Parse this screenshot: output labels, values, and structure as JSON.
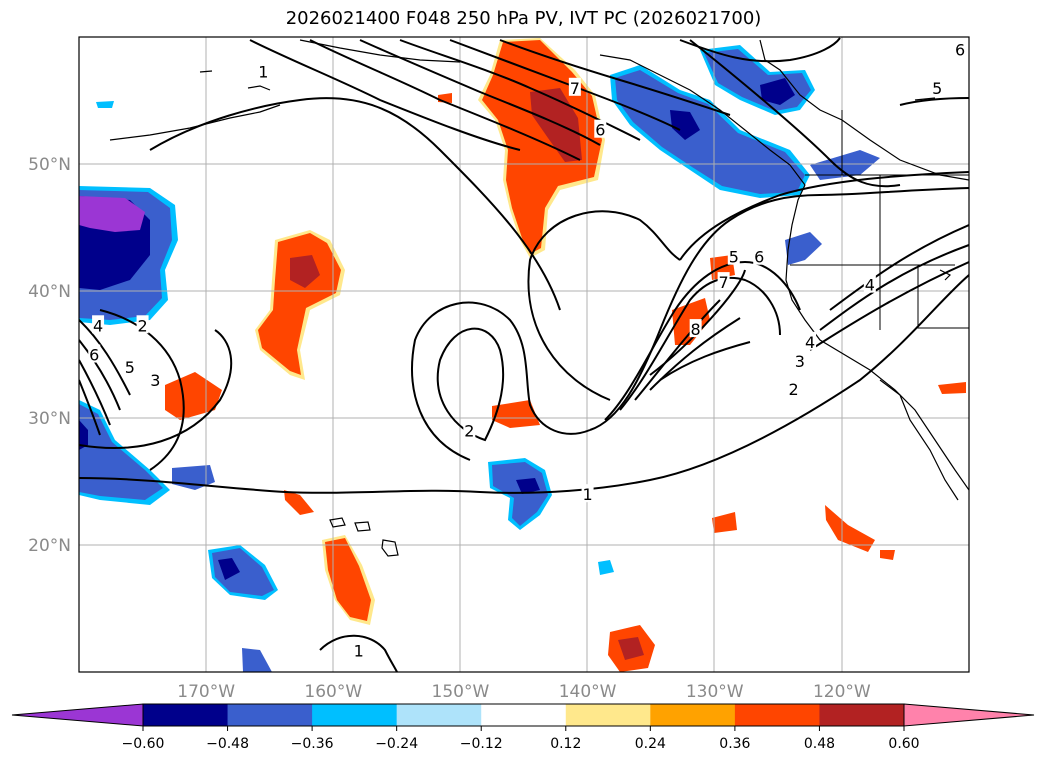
{
  "title": "2026021400 F048 250 hPa PV, IVT PC (2026021700)",
  "map": {
    "lon_range": [
      -180,
      -110
    ],
    "lat_range": [
      10,
      60
    ],
    "lat_ticks": [
      {
        "value": 20,
        "label": "20°N"
      },
      {
        "value": 30,
        "label": "30°N"
      },
      {
        "value": 40,
        "label": "40°N"
      },
      {
        "value": 50,
        "label": "50°N"
      }
    ],
    "lon_ticks": [
      {
        "value": -170,
        "label": "170°W"
      },
      {
        "value": -160,
        "label": "160°W"
      },
      {
        "value": -150,
        "label": "150°W"
      },
      {
        "value": -140,
        "label": "140°W"
      },
      {
        "value": -130,
        "label": "130°W"
      },
      {
        "value": -120,
        "label": "120°W"
      }
    ],
    "grid": true,
    "contour_labels": [
      {
        "text": "1",
        "lon": -165.5,
        "lat": 57.3
      },
      {
        "text": "7",
        "lon": -141.0,
        "lat": 56.0
      },
      {
        "text": "6",
        "lon": -139.0,
        "lat": 52.7
      },
      {
        "text": "5",
        "lon": -112.5,
        "lat": 56.0
      },
      {
        "text": "6",
        "lon": -110.7,
        "lat": 59.0
      },
      {
        "text": "5",
        "lon": -128.5,
        "lat": 42.7
      },
      {
        "text": "6",
        "lon": -126.5,
        "lat": 42.7
      },
      {
        "text": "7",
        "lon": -129.3,
        "lat": 40.7
      },
      {
        "text": "8",
        "lon": -131.5,
        "lat": 37.0
      },
      {
        "text": "4",
        "lon": -117.8,
        "lat": 40.5
      },
      {
        "text": "4",
        "lon": -122.5,
        "lat": 36.0
      },
      {
        "text": "3",
        "lon": -123.3,
        "lat": 34.5
      },
      {
        "text": "2",
        "lon": -123.8,
        "lat": 32.3
      },
      {
        "text": "2",
        "lon": -149.3,
        "lat": 29.0
      },
      {
        "text": "1",
        "lon": -140.0,
        "lat": 24.0
      },
      {
        "text": "4",
        "lon": -178.5,
        "lat": 37.3
      },
      {
        "text": "2",
        "lon": -175.0,
        "lat": 37.3
      },
      {
        "text": "6",
        "lon": -178.8,
        "lat": 35.0
      },
      {
        "text": "5",
        "lon": -176.0,
        "lat": 34.0
      },
      {
        "text": "3",
        "lon": -174.0,
        "lat": 33.0
      },
      {
        "text": "1",
        "lon": -158.0,
        "lat": 11.7
      }
    ]
  },
  "colorbar": {
    "colors": [
      "#9b36d4",
      "#00008b",
      "#3a5fcd",
      "#00bfff",
      "#aee3fa",
      "#ffffff",
      "#ffe88c",
      "#ffa200",
      "#ff4500",
      "#b22222",
      "#ff82ab"
    ],
    "tick_labels": [
      "−0.60",
      "−0.48",
      "−0.36",
      "−0.24",
      "−0.12",
      "0.12",
      "0.24",
      "0.36",
      "0.48",
      "0.60"
    ]
  }
}
